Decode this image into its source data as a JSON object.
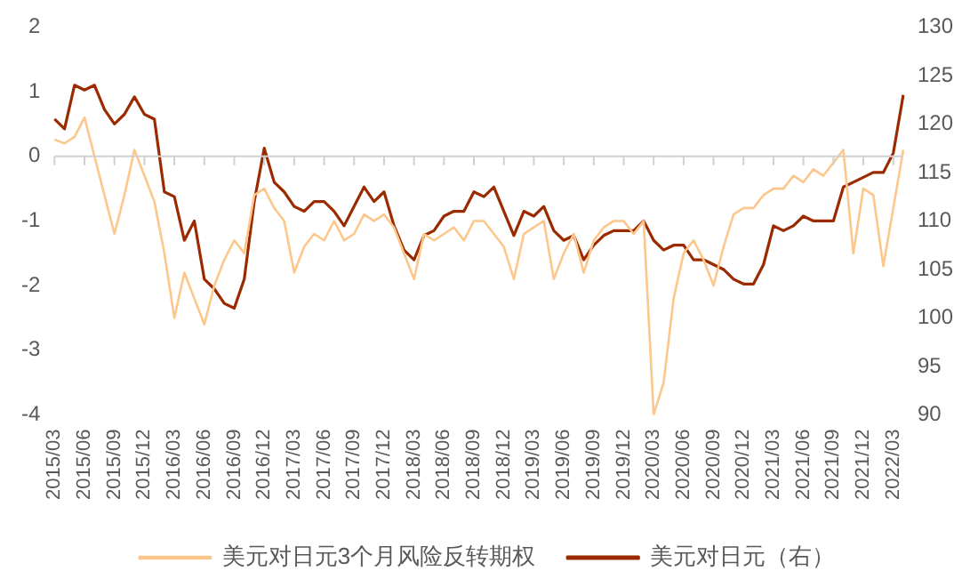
{
  "chart_data": {
    "type": "line",
    "categories": [
      "2015/03",
      null,
      null,
      "2015/06",
      null,
      null,
      "2015/09",
      null,
      null,
      "2015/12",
      null,
      null,
      "2016/03",
      null,
      null,
      "2016/06",
      null,
      null,
      "2016/09",
      null,
      null,
      "2016/12",
      null,
      null,
      "2017/03",
      null,
      null,
      "2017/06",
      null,
      null,
      "2017/09",
      null,
      null,
      "2017/12",
      null,
      null,
      "2018/03",
      null,
      null,
      "2018/06",
      null,
      null,
      "2018/09",
      null,
      null,
      "2018/12",
      null,
      null,
      "2019/03",
      null,
      null,
      "2019/06",
      null,
      null,
      "2019/09",
      null,
      null,
      "2019/12",
      null,
      null,
      "2020/03",
      null,
      null,
      "2020/06",
      null,
      null,
      "2020/09",
      null,
      null,
      "2020/12",
      null,
      null,
      "2021/03",
      null,
      null,
      "2021/06",
      null,
      null,
      "2021/09",
      null,
      null,
      "2021/12",
      null,
      null,
      "2022/03",
      null
    ],
    "series": [
      {
        "name": "美元对日元3个月风险反转期权",
        "color": "#fdc68a",
        "values": [
          0.26,
          0.2,
          0.3,
          0.6,
          0,
          -0.6,
          -1.2,
          -0.6,
          0.1,
          -0.3,
          -0.7,
          -1.5,
          -2.5,
          -1.8,
          -2.2,
          -2.6,
          -2.0,
          -1.6,
          -1.3,
          -1.5,
          -0.6,
          -0.5,
          -0.8,
          -1.0,
          -1.8,
          -1.4,
          -1.2,
          -1.3,
          -1.0,
          -1.3,
          -1.2,
          -0.9,
          -1.0,
          -0.9,
          -1.1,
          -1.5,
          -1.9,
          -1.2,
          -1.3,
          -1.2,
          -1.1,
          -1.3,
          -1.0,
          -1.0,
          -1.2,
          -1.4,
          -1.9,
          -1.2,
          -1.1,
          -1.0,
          -1.9,
          -1.5,
          -1.2,
          -1.8,
          -1.3,
          -1.1,
          -1.0,
          -1.0,
          -1.2,
          -1.0,
          -4.0,
          -3.5,
          -2.2,
          -1.5,
          -1.3,
          -1.6,
          -2.0,
          -1.4,
          -0.9,
          -0.8,
          -0.8,
          -0.6,
          -0.5,
          -0.5,
          -0.3,
          -0.4,
          -0.2,
          -0.3,
          -0.1,
          0.1,
          -1.5,
          -0.5,
          -0.6,
          -1.7,
          -0.8,
          0.1
        ]
      },
      {
        "name": "美元对日元（右）",
        "color": "#9c2a00",
        "axis": "y2",
        "values": [
          120.5,
          119.5,
          124,
          123.5,
          124,
          121.5,
          120,
          121,
          122.8,
          121,
          120.5,
          113,
          112.5,
          108,
          110,
          104,
          103,
          101.5,
          101,
          104,
          112,
          117.5,
          114,
          113,
          111.5,
          111,
          112,
          112,
          111,
          109.5,
          111.5,
          113.5,
          112,
          113,
          109.5,
          107,
          106,
          108.5,
          109,
          110.5,
          111,
          111,
          113,
          112.5,
          113.5,
          111,
          108.5,
          111,
          110.5,
          111.5,
          109,
          108,
          108.5,
          106,
          107.5,
          108.5,
          109,
          109,
          109,
          110,
          108,
          107,
          107.5,
          107.5,
          106,
          106,
          105.5,
          105,
          104,
          103.5,
          103.5,
          105.5,
          109.5,
          109,
          109.5,
          110.5,
          110,
          110,
          110,
          113.5,
          114,
          114.5,
          115,
          115,
          117,
          123
        ]
      }
    ],
    "ylim": [
      -4,
      2
    ],
    "yticks": [
      -4,
      -3,
      -2,
      -1,
      0,
      1,
      2
    ],
    "y2lim": [
      90,
      130
    ],
    "y2ticks": [
      90,
      95,
      100,
      105,
      110,
      115,
      120,
      125,
      130
    ],
    "ref_lines": [
      {
        "axis": "y",
        "value": 0,
        "color": "#d0d0d0"
      }
    ],
    "legend": "bottom",
    "marker": "none",
    "line_style": "solid"
  }
}
